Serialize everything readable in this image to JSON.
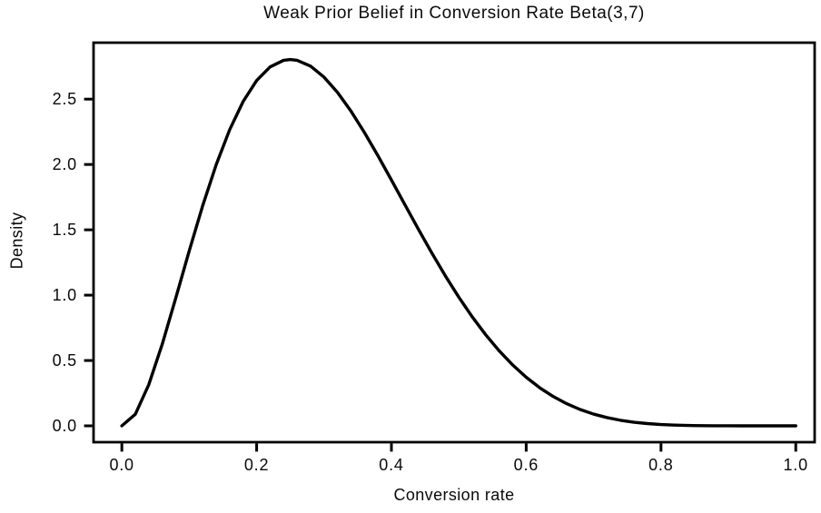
{
  "chart_data": {
    "type": "line",
    "title": "Weak Prior Belief in Conversion Rate Beta(3,7)",
    "xlabel": "Conversion rate",
    "ylabel": "Density",
    "distribution": "Beta(3,7)",
    "xlim": [
      -0.042,
      1.028
    ],
    "ylim": [
      -0.125,
      2.932
    ],
    "xticks": [
      0.0,
      0.2,
      0.4,
      0.6,
      0.8,
      1.0
    ],
    "xticklabels": [
      "0.0",
      "0.2",
      "0.4",
      "0.6",
      "0.8",
      "1.0"
    ],
    "yticks": [
      0.0,
      0.5,
      1.0,
      1.5,
      2.0,
      2.5
    ],
    "yticklabels": [
      "0.0",
      "0.5",
      "1.0",
      "1.5",
      "2.0",
      "2.5"
    ],
    "grid": false,
    "legend": null,
    "line_color": "#000000",
    "line_width": 3.4,
    "axis_color": "#000000",
    "background_color": "#ffffff",
    "series": [
      {
        "name": "Beta(3,7) prior density",
        "x": [
          0.0,
          0.02,
          0.04,
          0.06,
          0.08,
          0.1,
          0.12,
          0.14,
          0.16,
          0.18,
          0.2,
          0.22,
          0.24,
          0.25,
          0.26,
          0.28,
          0.3,
          0.32,
          0.34,
          0.36,
          0.38,
          0.4,
          0.42,
          0.44,
          0.46,
          0.48,
          0.5,
          0.52,
          0.54,
          0.56,
          0.58,
          0.6,
          0.62,
          0.64,
          0.66,
          0.68,
          0.7,
          0.72,
          0.74,
          0.76,
          0.78,
          0.8,
          0.82,
          0.84,
          0.86,
          0.88,
          0.9,
          0.92,
          0.94,
          0.96,
          0.98,
          1.0
        ],
        "y": [
          0.0,
          0.0893,
          0.3156,
          0.6259,
          0.978,
          1.3392,
          1.6852,
          1.9983,
          2.2663,
          2.4822,
          2.6424,
          2.7467,
          2.7971,
          2.8032,
          2.7973,
          2.7524,
          2.6683,
          2.5513,
          2.4079,
          2.2444,
          2.0669,
          1.8812,
          1.6923,
          1.5046,
          1.3221,
          1.1479,
          0.9844,
          0.8334,
          0.6962,
          0.5734,
          0.4653,
          0.3716,
          0.2917,
          0.2247,
          0.1696,
          0.1251,
          0.09,
          0.063,
          0.0426,
          0.0278,
          0.0174,
          0.0103,
          0.0058,
          0.003,
          0.0014,
          0.0006,
          0.0002,
          0.0001,
          0.0,
          0.0,
          0.0,
          0.0
        ]
      }
    ]
  }
}
